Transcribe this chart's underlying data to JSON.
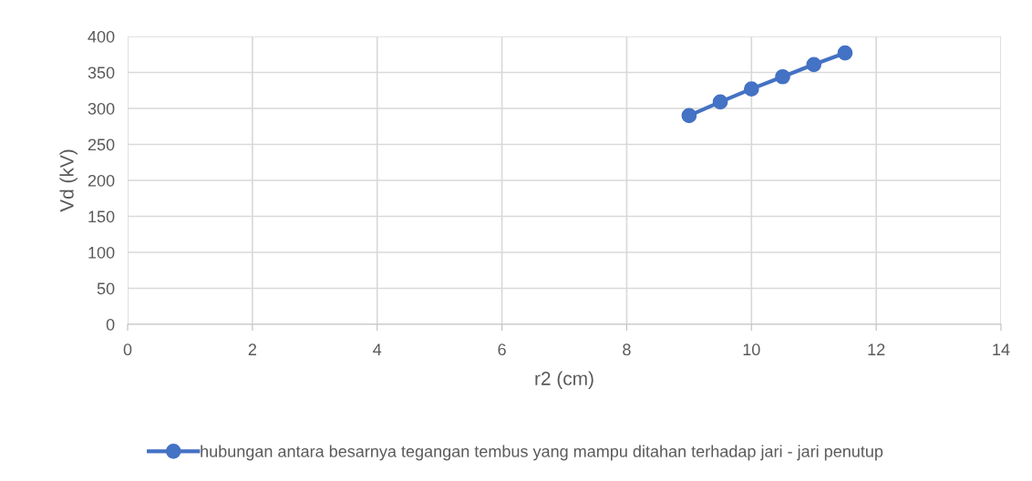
{
  "chart_data": {
    "type": "line",
    "xlabel": "r2 (cm)",
    "ylabel": "Vd (kV)",
    "x": [
      9,
      9.5,
      10,
      10.5,
      11,
      11.5
    ],
    "series": [
      {
        "name": "hubungan antara besarnya tegangan tembus yang mampu ditahan terhadap jari - jari penutup",
        "color": "#4472c4",
        "values": [
          290,
          309,
          327,
          344,
          361,
          377
        ]
      }
    ],
    "xlim": [
      0,
      14
    ],
    "xticks": [
      0,
      2,
      4,
      6,
      8,
      10,
      12,
      14
    ],
    "ylim": [
      0,
      400
    ],
    "yticks": [
      0,
      50,
      100,
      150,
      200,
      250,
      300,
      350,
      400
    ],
    "grid": true,
    "legend": "bottom",
    "marker": "circle",
    "line_style": "solid"
  }
}
